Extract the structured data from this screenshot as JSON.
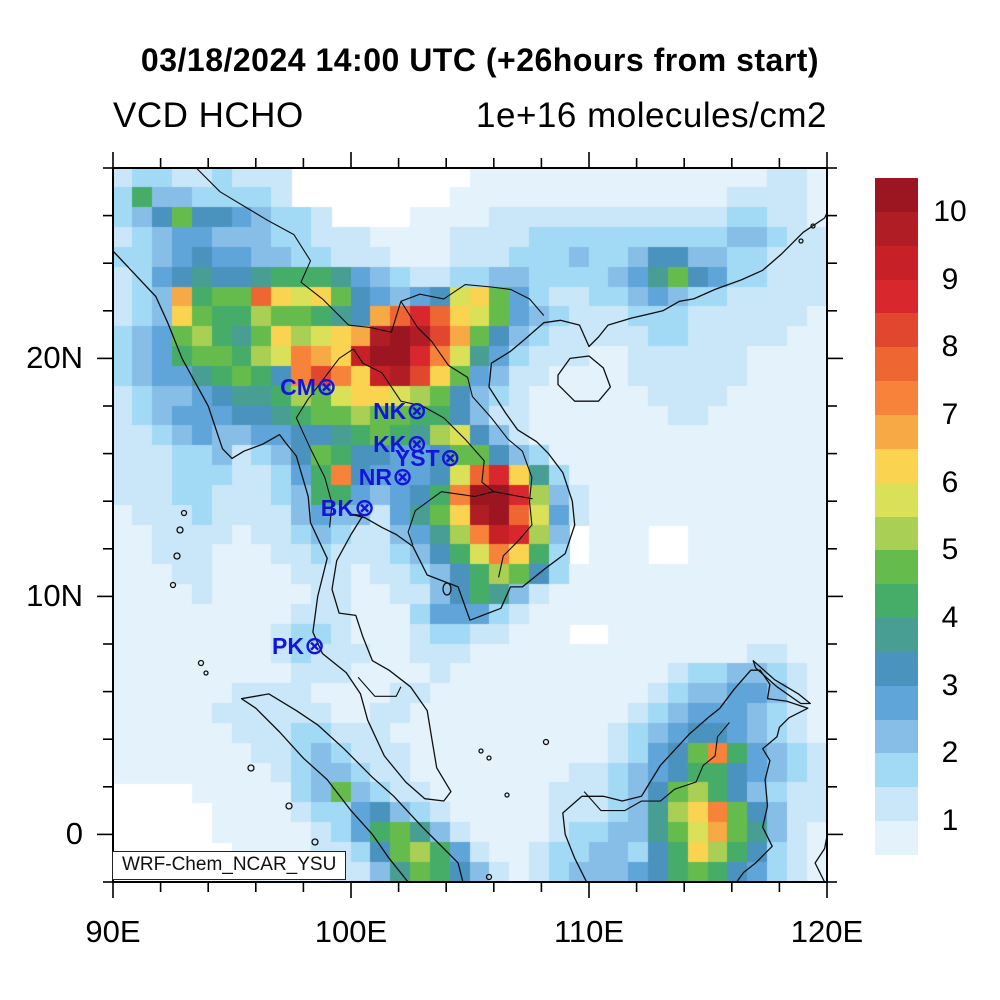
{
  "header": {
    "title": "03/18/2024 14:00 UTC (+26hours from start)",
    "subtitle_left": "VCD HCHO",
    "subtitle_right": "1e+16 molecules/cm2"
  },
  "watermark": "WRF-Chem_NCAR_YSU",
  "map": {
    "lon_min": 90,
    "lon_max": 120,
    "lat_min": -2,
    "lat_max": 28,
    "minor_tick_step_deg": 2,
    "x_major_ticks": [
      {
        "label": "90E",
        "lon": 90
      },
      {
        "label": "100E",
        "lon": 100
      },
      {
        "label": "110E",
        "lon": 110
      },
      {
        "label": "120E",
        "lon": 120
      }
    ],
    "y_major_ticks": [
      {
        "label": "20N",
        "lat": 20
      },
      {
        "label": "10N",
        "lat": 10
      },
      {
        "label": "0",
        "lat": 0
      }
    ]
  },
  "stations": [
    {
      "id": "CM",
      "lon": 98.9,
      "lat": 18.8
    },
    {
      "id": "NK",
      "lon": 102.7,
      "lat": 17.8
    },
    {
      "id": "KK",
      "lon": 102.7,
      "lat": 16.4
    },
    {
      "id": "YST",
      "lon": 104.1,
      "lat": 15.8
    },
    {
      "id": "NR",
      "lon": 102.1,
      "lat": 15.0
    },
    {
      "id": "BK",
      "lon": 100.5,
      "lat": 13.7
    },
    {
      "id": "PK",
      "lon": 98.4,
      "lat": 7.9
    }
  ],
  "station_marker": "⊗",
  "colorbar": {
    "min": 0.5,
    "max": 10.5,
    "band_step": 0.5,
    "tick_values": [
      1,
      2,
      3,
      4,
      5,
      6,
      7,
      8,
      9,
      10
    ],
    "colors": [
      "#E3F2FB",
      "#C9E7F8",
      "#A2D9F5",
      "#87BEE7",
      "#60A5D9",
      "#4B93BF",
      "#489E93",
      "#46AD68",
      "#65BC4D",
      "#A9CF54",
      "#DAE057",
      "#FAD450",
      "#F6A944",
      "#F68339",
      "#EE6631",
      "#E1462F",
      "#D8272D",
      "#C72127",
      "#B11D25",
      "#9B1621"
    ],
    "below_min_color": "#FFFFFF"
  },
  "chart_data": {
    "type": "heatmap",
    "title": "VCD HCHO",
    "units": "1e+16 molecules/cm2",
    "timestamp": "03/18/2024 14:00 UTC (+26hours from start)",
    "model_label": "WRF-Chem_NCAR_YSU",
    "lon_range": [
      90,
      120
    ],
    "lat_range": [
      -2,
      28
    ],
    "value_range": [
      0.5,
      10.5
    ],
    "grid_cols": 36,
    "grid_rows": 36,
    "value_encoding": {
      "chars": ".123456789ABCDEFGHIJK",
      "note": "'.' = below 0.5 (white). Char at index n = palette band n spanning value 0.5+(n-1)*0.5 to 0.5+n*0.5 (1e16 molec/cm2). Rows run north to south, cols west to east."
    },
    "rows": [
      "233223222.........111111111111111221",
      "384433332........1111111111111122221",
      "34696654332....111122222222222233221",
      "234554443322211112222333333333344322",
      "334565544332221112223334334664433222",
      "235676678887543223344333345796533222",
      "234D899FCBC965456BC95322334543322222",
      "234C988A99876DFHFCB95432223332222221",
      "3459A879CABCDJKJGD964322222332222211",
      "3458998ABEDCIKKHEB753222112222221111",
      "345578986EGECIJGC9542211112222221111",
      "234456778A9BCCBA96432111111222211111",
      "234555667899A99886422111111122111111",
      "2234544556678987AB642111111111111111",
      "222334234698665569964311111111111111",
      "22233322358E65556BFHC731111111111111",
      "22233222348854568EKKHA42111111111111",
      "12223222245442579CJKFB52111111111111",
      "11222212234322457AEIHA4.111..1111111",
      "112221112232223468BEC83.111..1111111",
      "1112211112221223468A9631111111111111",
      "111121111122112246874211111111111111",
      "111111111222111355532111111111111111",
      "11111111233211123322111..11111111111",
      "111111112322211222111111111111112211",
      "111111111222111121111111111123344321",
      "111111222211112211111111111234455421",
      "111112222221122111111111112345554321",
      "111111222332221111111111123456654321",
      "111111122343222111111111123569E85432",
      "111111112344322111111112234568865432",
      "....1111134943221111112223469A864322",
      ".....11112335643211111222347ACE96422",
      ".....111112358974211112334479BD97421",
      "......111122369A8521123344368CA86321",
      ".......11112247986421234445689865321"
    ]
  }
}
